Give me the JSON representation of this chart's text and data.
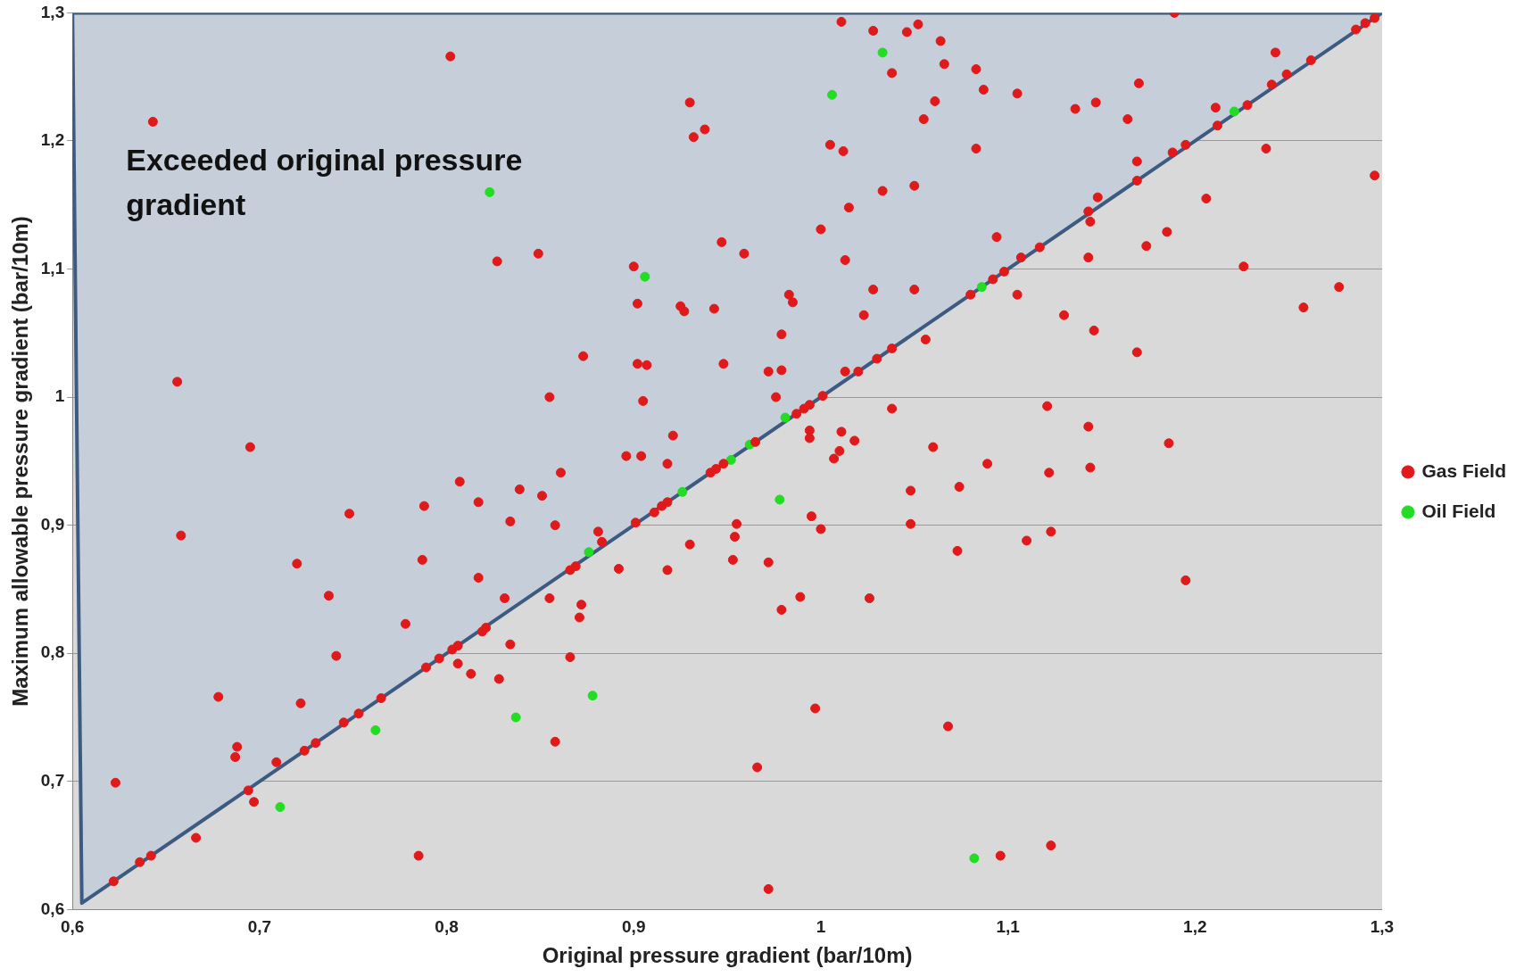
{
  "chart_data": {
    "type": "scatter",
    "xlabel": "Original pressure gradient (bar/10m)",
    "ylabel": "Maximum allowable pressure gradient (bar/10m)",
    "annotations": [
      "Exceeded original pressure gradient"
    ],
    "xlim": [
      0.6,
      1.3
    ],
    "ylim": [
      0.6,
      1.3
    ],
    "xticks": [
      {
        "value": 0.6,
        "label": "0,6"
      },
      {
        "value": 0.7,
        "label": "0,7"
      },
      {
        "value": 0.8,
        "label": "0,8"
      },
      {
        "value": 0.9,
        "label": "0,9"
      },
      {
        "value": 1,
        "label": "1"
      },
      {
        "value": 1.1,
        "label": "1,1"
      },
      {
        "value": 1.2,
        "label": "1,2"
      },
      {
        "value": 1.3,
        "label": "1,3"
      }
    ],
    "yticks": [
      {
        "value": 0.6,
        "label": "0,6"
      },
      {
        "value": 0.7,
        "label": "0,7"
      },
      {
        "value": 0.8,
        "label": "0,8"
      },
      {
        "value": 0.9,
        "label": "0,9"
      },
      {
        "value": 1,
        "label": "1"
      },
      {
        "value": 1.1,
        "label": "1,1"
      },
      {
        "value": 1.2,
        "label": "1,2"
      },
      {
        "value": 1.3,
        "label": "1,3"
      }
    ],
    "grid": "y",
    "legend": "right",
    "series": [
      {
        "type": "area",
        "color": "#3d5a80",
        "x": [
          0.6,
          0.605,
          1.3,
          0.6
        ],
        "values": [
          1.3,
          0.605,
          1.3,
          1.3
        ]
      },
      {
        "name": "Gas Field",
        "color": "#e0191b",
        "marker": "circle",
        "x": [
          0.623,
          0.622,
          0.636,
          0.642,
          0.643,
          0.656,
          0.658,
          0.666,
          0.678,
          0.688,
          0.687,
          0.695,
          0.694,
          0.697,
          0.709,
          0.72,
          0.722,
          0.724,
          0.73,
          0.737,
          0.741,
          0.748,
          0.745,
          0.753,
          0.765,
          0.778,
          0.785,
          0.788,
          0.787,
          0.789,
          0.796,
          0.803,
          0.806,
          0.802,
          0.807,
          0.806,
          0.813,
          0.817,
          0.817,
          0.819,
          0.821,
          0.827,
          0.828,
          0.831,
          0.834,
          0.834,
          0.839,
          0.849,
          0.851,
          0.855,
          0.855,
          0.858,
          0.858,
          0.861,
          0.866,
          0.866,
          0.869,
          0.871,
          0.872,
          0.873,
          0.883,
          0.881,
          0.892,
          0.896,
          0.9,
          0.901,
          0.902,
          0.902,
          0.907,
          0.905,
          0.904,
          0.911,
          0.915,
          0.918,
          0.918,
          0.918,
          0.921,
          0.925,
          0.927,
          0.93,
          0.932,
          0.938,
          0.93,
          0.941,
          0.944,
          0.948,
          0.943,
          0.947,
          0.948,
          0.955,
          0.954,
          0.953,
          0.959,
          0.965,
          0.966,
          0.972,
          0.972,
          0.979,
          0.972,
          0.976,
          0.979,
          0.979,
          0.983,
          0.985,
          0.987,
          0.991,
          0.994,
          1.001,
          0.989,
          0.994,
          0.994,
          0.995,
          0.997,
          1.0,
          1.0,
          1.005,
          1.007,
          1.01,
          1.011,
          1.011,
          1.012,
          1.013,
          1.013,
          1.02,
          1.03,
          1.038,
          1.018,
          1.015,
          1.023,
          1.026,
          1.028,
          1.028,
          1.033,
          1.038,
          1.038,
          1.046,
          1.052,
          1.05,
          1.05,
          1.048,
          1.048,
          1.055,
          1.056,
          1.06,
          1.061,
          1.064,
          1.066,
          1.068,
          1.074,
          1.073,
          1.083,
          1.087,
          1.083,
          1.08,
          1.092,
          1.098,
          1.094,
          1.089,
          1.096,
          1.105,
          1.105,
          1.11,
          1.13,
          1.121,
          1.122,
          1.123,
          1.123,
          1.136,
          1.143,
          1.143,
          1.144,
          1.143,
          1.144,
          1.146,
          1.147,
          1.148,
          1.164,
          1.169,
          1.169,
          1.17,
          1.169,
          1.174,
          1.185,
          1.186,
          1.189,
          1.188,
          1.195,
          1.195,
          1.206,
          1.211,
          1.212,
          1.226,
          1.228,
          1.238,
          1.241,
          1.243,
          1.249,
          1.258,
          1.262,
          1.277,
          1.286,
          1.291,
          1.296,
          1.296,
          1.107,
          1.117
        ],
        "values": [
          0.699,
          0.622,
          0.637,
          0.642,
          1.215,
          1.012,
          0.892,
          0.656,
          0.766,
          0.727,
          0.719,
          0.961,
          0.693,
          0.684,
          0.715,
          0.87,
          0.761,
          0.724,
          0.73,
          0.845,
          0.798,
          0.909,
          0.746,
          0.753,
          0.765,
          0.823,
          0.642,
          0.915,
          0.873,
          0.789,
          0.796,
          0.803,
          0.806,
          1.266,
          0.934,
          0.792,
          0.784,
          0.918,
          0.859,
          0.817,
          0.82,
          1.106,
          0.78,
          0.843,
          0.807,
          0.903,
          0.928,
          1.112,
          0.923,
          1.0,
          0.843,
          0.731,
          0.9,
          0.941,
          0.797,
          0.865,
          0.868,
          0.828,
          0.838,
          1.032,
          0.887,
          0.895,
          0.866,
          0.954,
          1.102,
          0.902,
          1.073,
          1.026,
          1.025,
          0.997,
          0.954,
          0.91,
          0.915,
          0.918,
          0.865,
          0.948,
          0.97,
          1.071,
          1.067,
          1.23,
          1.203,
          1.209,
          0.885,
          0.941,
          0.944,
          0.948,
          1.069,
          1.121,
          1.026,
          0.901,
          0.891,
          0.873,
          1.112,
          0.965,
          0.711,
          0.616,
          1.02,
          1.021,
          0.871,
          1.0,
          1.049,
          0.834,
          1.08,
          1.074,
          0.987,
          0.991,
          0.994,
          1.001,
          0.844,
          0.974,
          0.968,
          0.907,
          0.757,
          0.897,
          1.131,
          1.197,
          0.952,
          0.958,
          0.973,
          1.293,
          1.192,
          1.107,
          1.02,
          1.02,
          1.03,
          1.038,
          0.966,
          1.148,
          1.064,
          0.843,
          1.286,
          1.084,
          1.161,
          1.253,
          0.991,
          1.285,
          1.291,
          1.165,
          1.084,
          0.927,
          0.901,
          1.217,
          1.045,
          0.961,
          1.231,
          1.278,
          1.26,
          0.743,
          0.93,
          0.88,
          1.256,
          1.24,
          1.194,
          1.08,
          1.092,
          1.098,
          1.125,
          0.948,
          0.642,
          1.237,
          1.08,
          0.888,
          1.064,
          0.993,
          0.941,
          0.895,
          0.65,
          1.225,
          1.109,
          1.145,
          1.137,
          0.977,
          0.945,
          1.052,
          1.23,
          1.156,
          1.217,
          1.035,
          1.184,
          1.245,
          1.169,
          1.118,
          1.129,
          0.964,
          1.3,
          1.191,
          1.197,
          0.857,
          1.155,
          1.226,
          1.212,
          1.102,
          1.228,
          1.194,
          1.244,
          1.269,
          1.252,
          1.07,
          1.263,
          1.086,
          1.287,
          1.292,
          1.296,
          1.173,
          1.109,
          1.117
        ]
      },
      {
        "name": "Oil Field",
        "color": "#22dd22",
        "marker": "circle",
        "x": [
          0.823,
          0.906,
          1.006,
          1.033,
          0.711,
          0.762,
          0.837,
          0.878,
          0.978,
          1.082,
          0.876,
          0.926,
          0.952,
          0.962,
          0.981,
          1.086,
          1.221
        ],
        "values": [
          1.16,
          1.094,
          1.236,
          1.269,
          0.68,
          0.74,
          0.75,
          0.767,
          0.92,
          0.64,
          0.879,
          0.926,
          0.951,
          0.963,
          0.984,
          1.086,
          1.223
        ]
      }
    ]
  }
}
